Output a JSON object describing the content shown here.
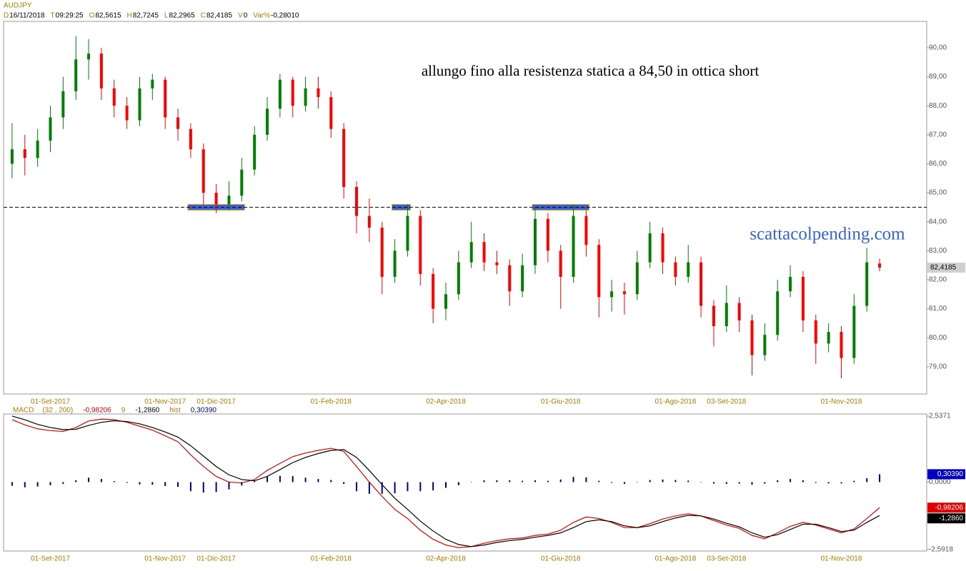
{
  "chart_data": [
    {
      "type": "candlestick",
      "title": "AUDJPY",
      "header": [
        {
          "label": "D",
          "value": "16/11/2018"
        },
        {
          "label": "T",
          "value": "09:29:25"
        },
        {
          "label": "O",
          "value": "82,5615"
        },
        {
          "label": "H",
          "value": "82,7245"
        },
        {
          "label": "L",
          "value": "82,2965"
        },
        {
          "label": "C",
          "value": "82,4185"
        },
        {
          "label": "V",
          "value": "0"
        },
        {
          "label": "Var%",
          "value": "-0,28010"
        }
      ],
      "annotation": "allungo fino alla resistenza statica a 84,50 in ottica short",
      "watermark": "scattacolpending.com",
      "last_label": "82,4185",
      "resistance": 84.5,
      "up_color": "#008000",
      "down_color": "#ff0000",
      "categories": [
        null,
        null,
        null,
        "01-Set-2017",
        null,
        null,
        null,
        null,
        null,
        null,
        null,
        null,
        "01-Nov-2017",
        null,
        null,
        null,
        "01-Dic-2017",
        null,
        null,
        null,
        null,
        null,
        null,
        null,
        null,
        "01-Feb-2018",
        null,
        null,
        null,
        null,
        null,
        null,
        null,
        null,
        "02-Apr-2018",
        null,
        null,
        null,
        null,
        null,
        null,
        null,
        null,
        "01-Giu-2018",
        null,
        null,
        null,
        null,
        null,
        null,
        null,
        null,
        "01-Ago-2018",
        null,
        null,
        null,
        "03-Set-2018",
        null,
        null,
        null,
        null,
        null,
        null,
        null,
        null,
        "01-Nov-2018",
        null,
        null,
        null
      ],
      "open": [
        86.0,
        86.5,
        86.2,
        86.8,
        87.6,
        88.5,
        89.6,
        89.8,
        88.6,
        88.0,
        87.5,
        88.6,
        88.9,
        87.6,
        87.2,
        86.5,
        85.0,
        84.6,
        84.9,
        85.8,
        87.0,
        87.9,
        88.9,
        88.0,
        88.6,
        88.3,
        87.2,
        85.2,
        84.2,
        83.8,
        82.1,
        83.0,
        84.2,
        82.2,
        81.0,
        81.5,
        82.6,
        83.3,
        82.6,
        82.5,
        81.6,
        82.5,
        84.1,
        83.0,
        82.1,
        84.2,
        83.2,
        81.4,
        81.6,
        81.5,
        82.6,
        83.6,
        82.6,
        82.1,
        82.6,
        81.1,
        80.4,
        81.2,
        80.6,
        79.4,
        80.1,
        81.6,
        82.1,
        80.6,
        79.8,
        80.2,
        79.3,
        81.1,
        82.5615
      ],
      "high": [
        87.4,
        87.0,
        87.2,
        88.0,
        89.0,
        90.4,
        90.3,
        90.0,
        88.9,
        88.3,
        89.0,
        89.1,
        89.0,
        87.9,
        87.4,
        86.7,
        85.3,
        85.4,
        86.2,
        87.3,
        88.3,
        89.1,
        89.0,
        89.0,
        89.0,
        88.5,
        87.4,
        85.4,
        84.8,
        84.0,
        83.4,
        84.6,
        84.4,
        82.4,
        81.9,
        83.0,
        84.0,
        83.6,
        83.0,
        82.7,
        82.9,
        84.5,
        84.3,
        83.2,
        84.6,
        84.4,
        83.4,
        82.0,
        81.9,
        83.0,
        84.0,
        83.8,
        82.8,
        83.2,
        82.8,
        81.3,
        81.8,
        81.4,
        80.8,
        80.5,
        82.0,
        82.5,
        82.3,
        80.8,
        80.5,
        80.4,
        81.5,
        83.1,
        82.7245
      ],
      "low": [
        85.5,
        85.6,
        85.9,
        86.4,
        87.2,
        88.2,
        88.9,
        88.2,
        87.6,
        87.2,
        87.3,
        88.2,
        87.2,
        86.8,
        86.2,
        84.6,
        84.3,
        84.4,
        84.7,
        85.6,
        86.8,
        87.6,
        87.6,
        87.8,
        87.9,
        86.9,
        84.8,
        83.6,
        83.3,
        81.5,
        81.9,
        82.8,
        81.8,
        80.5,
        80.6,
        81.3,
        82.4,
        82.3,
        82.2,
        81.1,
        81.4,
        82.2,
        82.6,
        81.0,
        81.9,
        82.8,
        80.7,
        80.9,
        80.8,
        81.3,
        82.4,
        82.2,
        81.8,
        81.9,
        80.7,
        79.7,
        80.2,
        80.2,
        78.7,
        79.2,
        79.9,
        81.4,
        80.2,
        79.1,
        79.5,
        78.6,
        79.1,
        80.9,
        82.2965
      ],
      "close": [
        86.5,
        86.2,
        86.8,
        87.6,
        88.5,
        89.6,
        89.8,
        88.6,
        88.0,
        87.5,
        88.6,
        88.9,
        87.6,
        87.2,
        86.5,
        85.0,
        84.6,
        84.9,
        85.8,
        87.0,
        87.9,
        88.9,
        88.0,
        88.6,
        88.3,
        87.2,
        85.2,
        84.2,
        83.8,
        82.1,
        83.0,
        84.2,
        82.2,
        81.0,
        81.5,
        82.6,
        83.3,
        82.6,
        82.5,
        81.6,
        82.5,
        84.1,
        83.0,
        82.1,
        84.2,
        83.2,
        81.4,
        81.6,
        81.5,
        82.6,
        83.6,
        82.6,
        82.1,
        82.6,
        81.1,
        80.4,
        81.2,
        80.6,
        79.4,
        80.1,
        81.6,
        82.1,
        80.6,
        79.8,
        80.2,
        79.3,
        81.1,
        82.6,
        82.4185
      ],
      "ylim": [
        78.06,
        90.91
      ],
      "yticks": [
        {
          "value": 79,
          "label": "79,00"
        },
        {
          "value": 80,
          "label": "80,00"
        },
        {
          "value": 81,
          "label": "81,00"
        },
        {
          "value": 82,
          "label": "82,00"
        },
        {
          "value": 83,
          "label": "83,00"
        },
        {
          "value": 84,
          "label": "84,00"
        },
        {
          "value": 85,
          "label": "85,00"
        },
        {
          "value": 86,
          "label": "86,00"
        },
        {
          "value": 87,
          "label": "87,00"
        },
        {
          "value": 88,
          "label": "88,00"
        },
        {
          "value": 89,
          "label": "89,00"
        },
        {
          "value": 90,
          "label": "90,00"
        }
      ]
    },
    {
      "type": "line",
      "title": "MACD",
      "params": "(32 , 200)",
      "series": [
        {
          "name": "MACD",
          "color": "#e00000",
          "last_label": "-0,98206",
          "values": [
            2.4,
            2.2,
            2.05,
            1.98,
            1.95,
            2.1,
            2.35,
            2.42,
            2.4,
            2.3,
            2.15,
            2.0,
            1.78,
            1.55,
            1.05,
            0.6,
            0.22,
            0.0,
            -0.03,
            0.1,
            0.45,
            0.72,
            0.98,
            1.12,
            1.22,
            1.3,
            1.18,
            0.6,
            0.0,
            -0.55,
            -1.05,
            -1.4,
            -1.85,
            -2.2,
            -2.42,
            -2.52,
            -2.48,
            -2.35,
            -2.25,
            -2.18,
            -2.15,
            -2.05,
            -2.0,
            -1.85,
            -1.55,
            -1.34,
            -1.4,
            -1.55,
            -1.75,
            -1.75,
            -1.6,
            -1.42,
            -1.3,
            -1.22,
            -1.3,
            -1.48,
            -1.65,
            -1.78,
            -2.05,
            -2.18,
            -1.95,
            -1.7,
            -1.55,
            -1.65,
            -1.8,
            -1.95,
            -1.8,
            -1.4,
            -0.98206
          ]
        },
        {
          "name": "9",
          "color": "#000000",
          "last_label": "-1,2860",
          "values": [
            2.54,
            2.4,
            2.22,
            2.1,
            2.02,
            2.03,
            2.18,
            2.3,
            2.36,
            2.33,
            2.24,
            2.1,
            1.93,
            1.73,
            1.4,
            1.0,
            0.6,
            0.28,
            0.1,
            0.05,
            0.22,
            0.48,
            0.75,
            0.95,
            1.1,
            1.22,
            1.25,
            0.95,
            0.45,
            -0.1,
            -0.62,
            -1.05,
            -1.5,
            -1.88,
            -2.2,
            -2.4,
            -2.48,
            -2.42,
            -2.32,
            -2.25,
            -2.2,
            -2.12,
            -2.05,
            -1.95,
            -1.75,
            -1.52,
            -1.45,
            -1.52,
            -1.68,
            -1.75,
            -1.68,
            -1.52,
            -1.38,
            -1.28,
            -1.3,
            -1.42,
            -1.58,
            -1.72,
            -1.95,
            -2.12,
            -2.02,
            -1.82,
            -1.62,
            -1.62,
            -1.75,
            -1.9,
            -1.85,
            -1.55,
            -1.286
          ]
        },
        {
          "name": "hist",
          "color": "#000080",
          "style": "bar",
          "last_label": "0,30390",
          "values": [
            -0.14,
            -0.2,
            -0.17,
            -0.12,
            -0.07,
            0.07,
            0.17,
            0.12,
            0.04,
            -0.03,
            -0.09,
            -0.1,
            -0.15,
            -0.18,
            -0.35,
            -0.4,
            -0.38,
            -0.28,
            -0.13,
            0.05,
            0.23,
            0.24,
            0.23,
            0.17,
            0.12,
            0.08,
            -0.07,
            -0.35,
            -0.45,
            -0.45,
            -0.43,
            -0.35,
            -0.35,
            -0.32,
            -0.22,
            -0.12,
            0.0,
            0.07,
            0.07,
            0.07,
            0.05,
            0.07,
            0.05,
            0.1,
            0.2,
            0.18,
            0.05,
            -0.03,
            -0.07,
            0.0,
            0.08,
            0.1,
            0.08,
            0.06,
            0.0,
            -0.06,
            -0.07,
            -0.06,
            -0.1,
            -0.06,
            0.07,
            0.12,
            0.07,
            -0.03,
            -0.05,
            -0.05,
            0.05,
            0.15,
            0.3039
          ]
        }
      ],
      "ylim": [
        -2.65,
        2.62
      ],
      "yticks": [
        {
          "value": 2.5371,
          "label": "2,5371"
        },
        {
          "value": 0,
          "label": "0,0000"
        },
        {
          "value": -2.5918,
          "label": "-2,5918"
        }
      ]
    }
  ]
}
